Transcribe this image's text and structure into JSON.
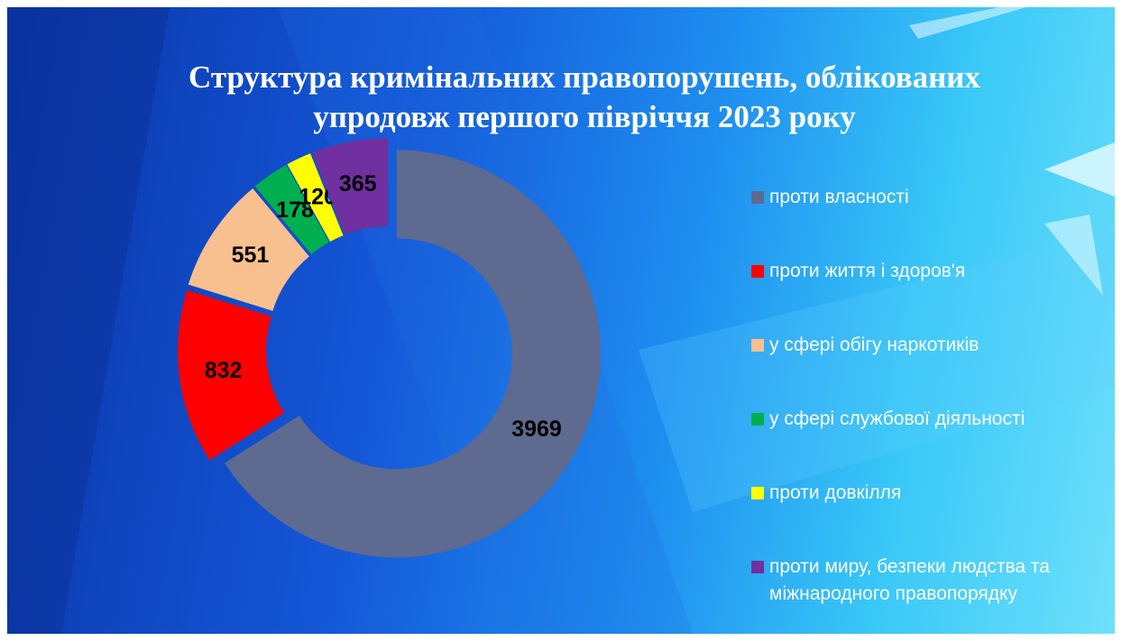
{
  "chart_data": {
    "type": "donut",
    "title": "Структура кримінальних правопорушень, облікованих упродовж першого півріччя 2023 року",
    "categories": [
      "проти власності",
      "проти життя і здоров'я",
      "у сфері обігу наркотиків",
      "у сфері службової діяльності",
      "проти довкілля",
      "проти миру, безпеки людства та міжнародного правопорядку"
    ],
    "values": [
      3969,
      832,
      551,
      178,
      120,
      365
    ],
    "colors": [
      "#5e6a90",
      "#ff0000",
      "#f8c08e",
      "#00b050",
      "#ffff00",
      "#7030a0"
    ],
    "legend": "right"
  }
}
